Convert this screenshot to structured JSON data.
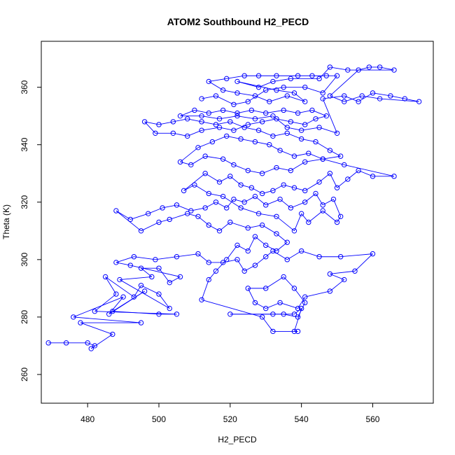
{
  "chart_data": {
    "type": "scatter",
    "title": "ATOM2 Southbound H2_PECD",
    "xlabel": "H2_PECD",
    "ylabel": "Theta (K)",
    "xlim": [
      467,
      577
    ],
    "ylim": [
      250,
      376
    ],
    "xticks": [
      480,
      500,
      520,
      540,
      560
    ],
    "yticks": [
      260,
      280,
      300,
      320,
      340,
      360
    ],
    "grid": false,
    "legend": "none",
    "marker": "open-circle",
    "connected": true,
    "colors": {
      "series": "#0000ff",
      "axis": "#000000"
    },
    "series": [
      {
        "values_note": "",
        "points": [
          [
            469,
            271
          ],
          [
            474,
            271
          ],
          [
            480,
            271
          ],
          [
            482,
            270
          ],
          [
            481,
            269
          ],
          [
            487,
            274
          ],
          [
            478,
            278
          ],
          [
            495,
            278
          ],
          [
            476,
            280
          ],
          [
            490,
            287
          ],
          [
            486,
            281
          ],
          [
            496,
            289
          ],
          [
            487,
            282
          ],
          [
            500,
            281
          ],
          [
            505,
            281
          ],
          [
            482,
            282
          ],
          [
            488,
            288
          ],
          [
            485,
            294
          ],
          [
            493,
            287
          ],
          [
            495,
            291
          ],
          [
            500,
            288
          ],
          [
            503,
            283
          ],
          [
            489,
            293
          ],
          [
            498,
            294
          ],
          [
            495,
            297
          ],
          [
            500,
            297
          ],
          [
            503,
            292
          ],
          [
            506,
            294
          ],
          [
            492,
            298
          ],
          [
            488,
            299
          ],
          [
            493,
            301
          ],
          [
            499,
            300
          ],
          [
            505,
            301
          ],
          [
            511,
            302
          ],
          [
            514,
            299
          ],
          [
            518,
            299
          ],
          [
            522,
            300
          ],
          [
            524,
            296
          ],
          [
            527,
            298
          ],
          [
            530,
            301
          ],
          [
            532,
            303
          ],
          [
            536,
            300
          ],
          [
            540,
            303
          ],
          [
            545,
            301
          ],
          [
            551,
            301
          ],
          [
            560,
            302
          ],
          [
            555,
            296
          ],
          [
            548,
            295
          ],
          [
            552,
            293
          ],
          [
            548,
            289
          ],
          [
            541,
            287
          ],
          [
            539,
            283
          ],
          [
            534,
            285
          ],
          [
            530,
            283
          ],
          [
            527,
            285
          ],
          [
            525,
            290
          ],
          [
            530,
            290
          ],
          [
            535,
            294
          ],
          [
            538,
            290
          ],
          [
            541,
            285
          ],
          [
            539,
            280
          ],
          [
            535,
            281
          ],
          [
            520,
            281
          ],
          [
            532,
            281
          ],
          [
            538,
            281
          ],
          [
            540,
            283
          ],
          [
            538,
            275
          ],
          [
            539,
            275
          ],
          [
            532,
            275
          ],
          [
            529,
            280
          ],
          [
            512,
            286
          ],
          [
            514,
            293
          ],
          [
            516,
            296
          ],
          [
            519,
            300
          ],
          [
            522,
            305
          ],
          [
            525,
            303
          ],
          [
            527,
            308
          ],
          [
            530,
            305
          ],
          [
            533,
            303
          ],
          [
            536,
            306
          ],
          [
            533,
            309
          ],
          [
            529,
            312
          ],
          [
            525,
            311
          ],
          [
            520,
            313
          ],
          [
            517,
            310
          ],
          [
            514,
            312
          ],
          [
            511,
            315
          ],
          [
            508,
            316
          ],
          [
            503,
            314
          ],
          [
            500,
            313
          ],
          [
            495,
            310
          ],
          [
            488,
            317
          ],
          [
            492,
            314
          ],
          [
            497,
            316
          ],
          [
            501,
            318
          ],
          [
            505,
            319
          ],
          [
            509,
            317
          ],
          [
            513,
            318
          ],
          [
            516,
            320
          ],
          [
            519,
            318
          ],
          [
            521,
            321
          ],
          [
            524,
            320
          ],
          [
            527,
            322
          ],
          [
            530,
            319
          ],
          [
            534,
            321
          ],
          [
            537,
            318
          ],
          [
            541,
            320
          ],
          [
            544,
            323
          ],
          [
            546,
            319
          ],
          [
            549,
            321
          ],
          [
            551,
            315
          ],
          [
            550,
            313
          ],
          [
            546,
            317
          ],
          [
            542,
            313
          ],
          [
            540,
            316
          ],
          [
            538,
            310
          ],
          [
            533,
            315
          ],
          [
            528,
            316
          ],
          [
            523,
            318
          ],
          [
            518,
            322
          ],
          [
            514,
            323
          ],
          [
            510,
            326
          ],
          [
            507,
            324
          ],
          [
            513,
            330
          ],
          [
            517,
            327
          ],
          [
            520,
            329
          ],
          [
            523,
            326
          ],
          [
            526,
            325
          ],
          [
            529,
            323
          ],
          [
            532,
            324
          ],
          [
            535,
            326
          ],
          [
            538,
            325
          ],
          [
            541,
            324
          ],
          [
            545,
            327
          ],
          [
            548,
            330
          ],
          [
            550,
            325
          ],
          [
            553,
            328
          ],
          [
            556,
            331
          ],
          [
            560,
            329
          ],
          [
            566,
            329
          ],
          [
            552,
            333
          ],
          [
            546,
            335
          ],
          [
            541,
            334
          ],
          [
            537,
            331
          ],
          [
            533,
            332
          ],
          [
            529,
            330
          ],
          [
            525,
            331
          ],
          [
            521,
            333
          ],
          [
            518,
            335
          ],
          [
            513,
            336
          ],
          [
            509,
            333
          ],
          [
            506,
            334
          ],
          [
            511,
            339
          ],
          [
            515,
            341
          ],
          [
            519,
            343
          ],
          [
            523,
            342
          ],
          [
            527,
            341
          ],
          [
            531,
            340
          ],
          [
            534,
            338
          ],
          [
            538,
            336
          ],
          [
            542,
            337
          ],
          [
            546,
            335
          ],
          [
            551,
            336
          ],
          [
            548,
            338
          ],
          [
            544,
            341
          ],
          [
            540,
            342
          ],
          [
            536,
            344
          ],
          [
            532,
            343
          ],
          [
            528,
            345
          ],
          [
            524,
            346
          ],
          [
            520,
            348
          ],
          [
            516,
            347
          ],
          [
            512,
            348
          ],
          [
            508,
            349
          ],
          [
            504,
            348
          ],
          [
            500,
            347
          ],
          [
            496,
            348
          ],
          [
            499,
            344
          ],
          [
            504,
            344
          ],
          [
            508,
            343
          ],
          [
            512,
            345
          ],
          [
            517,
            346
          ],
          [
            521,
            345
          ],
          [
            525,
            347
          ],
          [
            529,
            348
          ],
          [
            533,
            349
          ],
          [
            537,
            348
          ],
          [
            541,
            347
          ],
          [
            544,
            349
          ],
          [
            547,
            350
          ],
          [
            543,
            352
          ],
          [
            539,
            351
          ],
          [
            535,
            352
          ],
          [
            530,
            351
          ],
          [
            526,
            352
          ],
          [
            522,
            351
          ],
          [
            518,
            352
          ],
          [
            514,
            351
          ],
          [
            510,
            352
          ],
          [
            506,
            350
          ],
          [
            512,
            350
          ],
          [
            517,
            349
          ],
          [
            522,
            350
          ],
          [
            527,
            349
          ],
          [
            532,
            350
          ],
          [
            536,
            346
          ],
          [
            540,
            345
          ],
          [
            545,
            346
          ],
          [
            550,
            344
          ],
          [
            546,
            356
          ],
          [
            552,
            357
          ],
          [
            556,
            355
          ],
          [
            560,
            358
          ],
          [
            565,
            357
          ],
          [
            569,
            356
          ],
          [
            573,
            355
          ],
          [
            562,
            356
          ],
          [
            557,
            357
          ],
          [
            552,
            355
          ],
          [
            548,
            357
          ],
          [
            556,
            366
          ],
          [
            559,
            367
          ],
          [
            562,
            367
          ],
          [
            566,
            366
          ],
          [
            553,
            366
          ],
          [
            548,
            367
          ],
          [
            545,
            363
          ],
          [
            537,
            363
          ],
          [
            532,
            362
          ],
          [
            528,
            360
          ],
          [
            522,
            362
          ],
          [
            533,
            359
          ],
          [
            538,
            358
          ],
          [
            541,
            355
          ],
          [
            536,
            357
          ],
          [
            531,
            355
          ],
          [
            527,
            357
          ],
          [
            522,
            358
          ],
          [
            518,
            359
          ],
          [
            514,
            362
          ],
          [
            519,
            363
          ],
          [
            524,
            364
          ],
          [
            528,
            364
          ],
          [
            533,
            364
          ],
          [
            539,
            364
          ],
          [
            543,
            364
          ],
          [
            547,
            364
          ],
          [
            550,
            364
          ],
          [
            546,
            358
          ],
          [
            541,
            360
          ],
          [
            535,
            360
          ],
          [
            530,
            359
          ],
          [
            525,
            355
          ],
          [
            521,
            354
          ],
          [
            516,
            357
          ],
          [
            512,
            356
          ]
        ]
      }
    ]
  }
}
